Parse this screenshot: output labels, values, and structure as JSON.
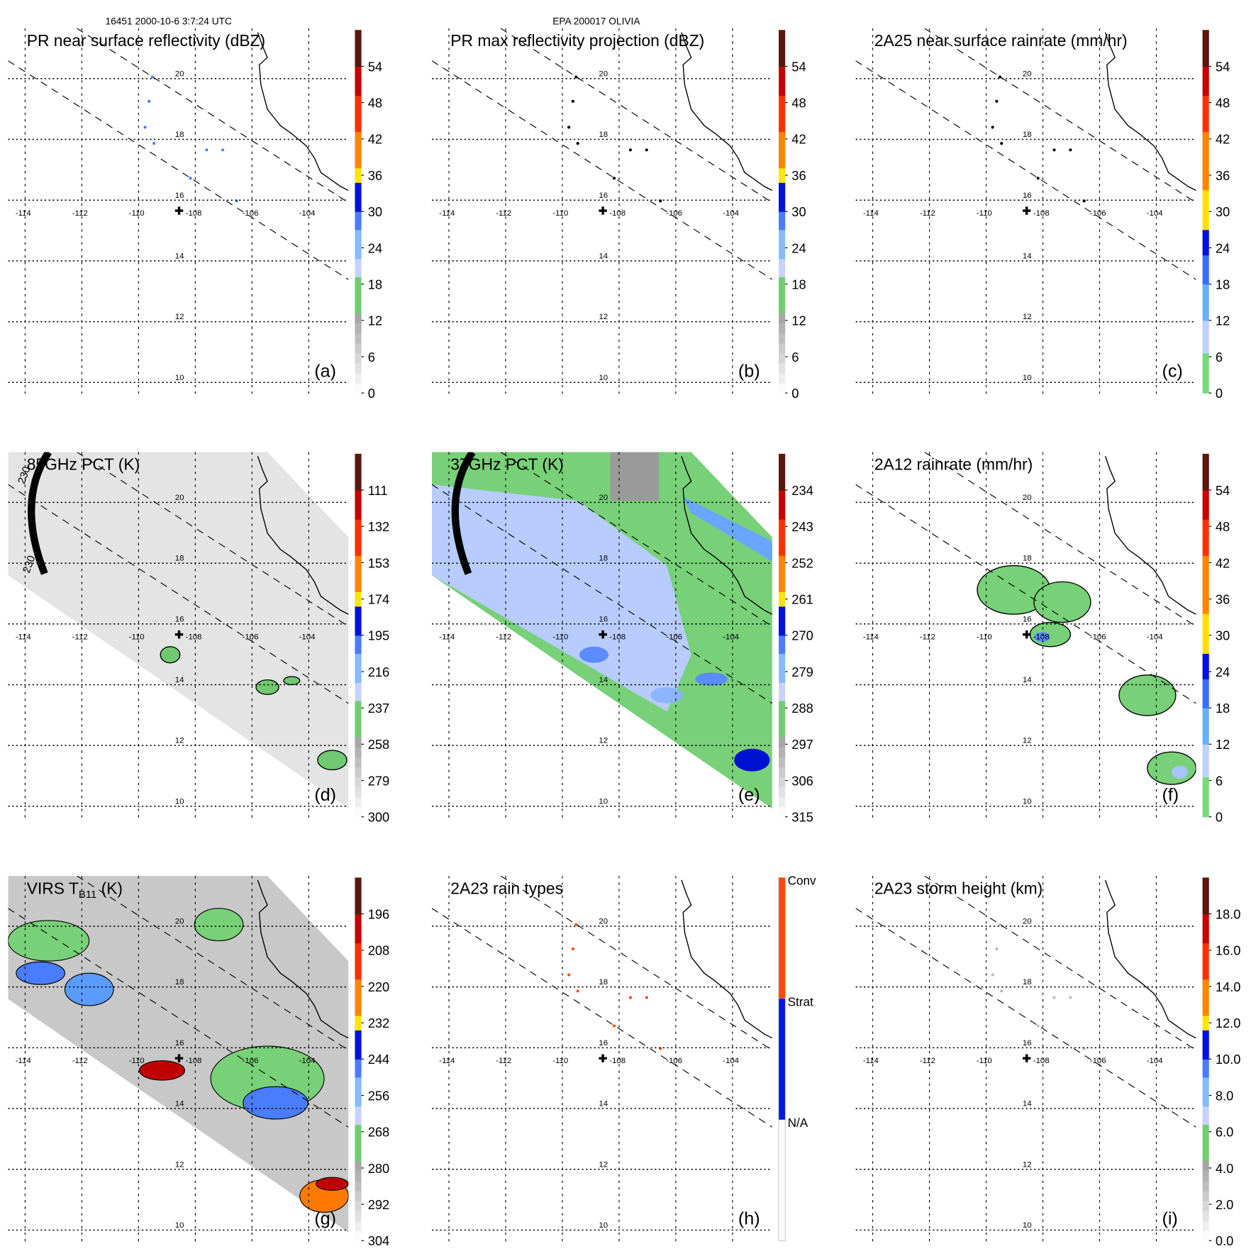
{
  "header": {
    "orbit_time": "16451 2000-10-6 3:7:24 UTC",
    "storm": "EPA 200017 OLIVIA"
  },
  "axes": {
    "lon_labels": [
      "-114",
      "-112",
      "-110",
      "-108",
      "-106",
      "-104"
    ],
    "lat_labels": [
      "20",
      "18",
      "16",
      "14",
      "12",
      "10"
    ]
  },
  "panels": [
    {
      "title": "PR near surface reflectivity (dBZ)",
      "letter": "(a)",
      "scale": "standard",
      "ticks": [
        "0",
        "6",
        "12",
        "18",
        "24",
        "30",
        "36",
        "42",
        "48",
        "54"
      ],
      "background": "none"
    },
    {
      "title": "PR max reflectivity projection (dBZ)",
      "letter": "(b)",
      "scale": "standard",
      "ticks": [
        "0",
        "6",
        "12",
        "18",
        "24",
        "30",
        "36",
        "42",
        "48",
        "54"
      ],
      "background": "none"
    },
    {
      "title": "2A25 near surface rainrate (mm/hr)",
      "letter": "(c)",
      "scale": "rain",
      "ticks": [
        "0",
        "6",
        "12",
        "18",
        "24",
        "30",
        "36",
        "42",
        "48",
        "54"
      ],
      "background": "none"
    },
    {
      "title": "85GHz PCT (K)",
      "letter": "(d)",
      "scale": "standard",
      "ticks": [
        "300",
        "279",
        "258",
        "237",
        "216",
        "195",
        "174",
        "153",
        "132",
        "111"
      ],
      "background": "swath-gray",
      "contour_label": "230"
    },
    {
      "title": "37GHz PCT (K)",
      "letter": "(e)",
      "scale": "standard",
      "ticks": [
        "315",
        "306",
        "297",
        "288",
        "279",
        "270",
        "261",
        "252",
        "243",
        "234"
      ],
      "background": "swath-green"
    },
    {
      "title": "2A12 rainrate (mm/hr)",
      "letter": "(f)",
      "scale": "rain",
      "ticks": [
        "0",
        "6",
        "12",
        "18",
        "24",
        "30",
        "36",
        "42",
        "48",
        "54"
      ],
      "background": "none"
    },
    {
      "title": "VIRS T",
      "title_sub": "B11",
      "title_unit": " (K)",
      "letter": "(g)",
      "scale": "standard",
      "ticks": [
        "304",
        "292",
        "280",
        "268",
        "256",
        "244",
        "232",
        "220",
        "208",
        "196"
      ],
      "background": "swath-ir"
    },
    {
      "title": "2A23 rain types",
      "letter": "(h)",
      "scale": "raintype",
      "ticks": [
        "N/A",
        "Strat",
        "Conv"
      ],
      "background": "none"
    },
    {
      "title": "2A23 storm height (km)",
      "letter": "(i)",
      "scale": "standard",
      "ticks": [
        "0.0",
        "2.0",
        "4.0",
        "6.0",
        "8.0",
        "10.0",
        "12.0",
        "14.0",
        "16.0",
        "18.0"
      ],
      "background": "none"
    }
  ],
  "colors": {
    "standard": [
      [
        0,
        0.22,
        "grad"
      ],
      [
        0.22,
        0.32,
        "#72cc72"
      ],
      [
        0.32,
        0.37,
        "#c8d2ff"
      ],
      [
        0.37,
        0.45,
        "#86bcff"
      ],
      [
        0.45,
        0.5,
        "#4a7cff"
      ],
      [
        0.5,
        0.58,
        "#0010e0"
      ],
      [
        0.58,
        0.62,
        "#ffe600"
      ],
      [
        0.62,
        0.72,
        "#ff8400"
      ],
      [
        0.72,
        0.82,
        "#ff3000"
      ],
      [
        0.82,
        0.9,
        "#c80000"
      ],
      [
        0.9,
        1,
        "#5a1610"
      ]
    ],
    "rain": [
      [
        0,
        0.11,
        "#7ad87a"
      ],
      [
        0.11,
        0.2,
        "#c0d0ff"
      ],
      [
        0.2,
        0.3,
        "#6ab0ff"
      ],
      [
        0.3,
        0.38,
        "#3a6cff"
      ],
      [
        0.38,
        0.45,
        "#0010e0"
      ],
      [
        0.45,
        0.56,
        "#ffe000"
      ],
      [
        0.56,
        0.72,
        "#ff8400"
      ],
      [
        0.72,
        0.82,
        "#ff3000"
      ],
      [
        0.82,
        0.9,
        "#c80000"
      ],
      [
        0.9,
        1,
        "#5a1610"
      ]
    ],
    "raintype": [
      [
        0,
        0.333,
        "#ffffff"
      ],
      [
        0.333,
        0.667,
        "#0018e8"
      ],
      [
        0.667,
        1,
        "#ff4a00"
      ]
    ],
    "swath_gray": "#e4e4e4",
    "swath_green": "#78d078",
    "light_blue": "#b8ccff",
    "mid_blue": "#5a8cff",
    "dark_blue": "#0010d0"
  }
}
